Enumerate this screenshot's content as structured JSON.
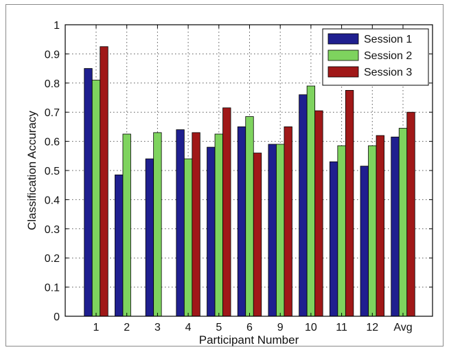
{
  "chart_data": {
    "type": "bar",
    "xlabel": "Participant Number",
    "ylabel": "Classification Accuracy",
    "categories": [
      "1",
      "2",
      "3",
      "4",
      "5",
      "6",
      "9",
      "10",
      "11",
      "12",
      "Avg"
    ],
    "ylim": [
      0,
      1
    ],
    "yticks": [
      "0",
      "0.1",
      "0.2",
      "0.3",
      "0.4",
      "0.5",
      "0.6",
      "0.7",
      "0.8",
      "0.9",
      "1"
    ],
    "grid": true,
    "legend_position": "top-right",
    "series": [
      {
        "name": "Session 1",
        "color": "#1f1f8f",
        "values": [
          0.85,
          0.485,
          0.54,
          0.64,
          0.58,
          0.65,
          0.59,
          0.76,
          0.53,
          0.515,
          0.615
        ]
      },
      {
        "name": "Session 2",
        "color": "#7ed35e",
        "values": [
          0.81,
          0.625,
          0.63,
          0.54,
          0.625,
          0.685,
          0.59,
          0.79,
          0.585,
          0.585,
          0.645
        ]
      },
      {
        "name": "Session 3",
        "color": "#a01818",
        "values": [
          0.925,
          null,
          null,
          0.63,
          0.715,
          0.56,
          0.65,
          0.705,
          0.775,
          0.62,
          0.7
        ]
      }
    ]
  }
}
